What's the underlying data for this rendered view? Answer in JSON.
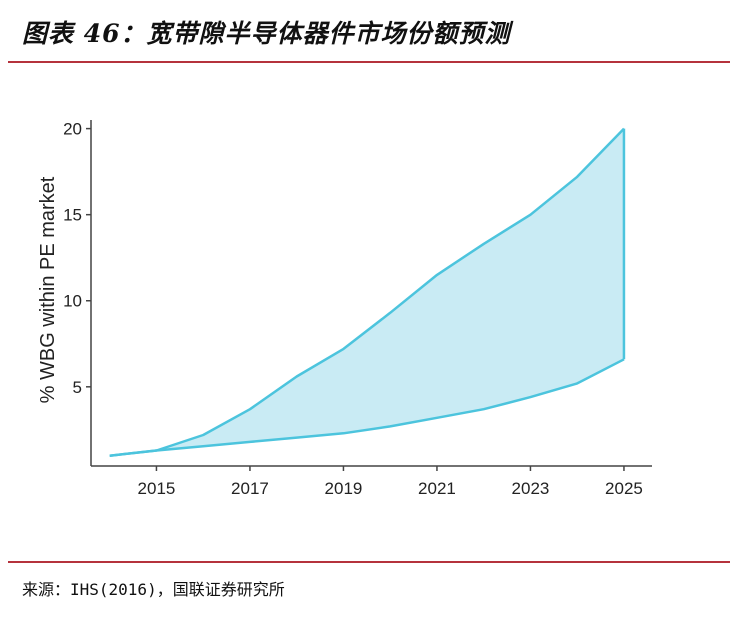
{
  "header": {
    "title": "图表 46：宽带隙半导体器件市场份额预测"
  },
  "footer": {
    "source": "来源：IHS(2016)，国联证券研究所"
  },
  "chart_data": {
    "type": "area",
    "title": "",
    "xlabel": "",
    "ylabel": "% WBG within PE market",
    "xlim": [
      2013.6,
      2025.6
    ],
    "ylim": [
      0.4,
      20.5
    ],
    "xticks": [
      2015,
      2017,
      2019,
      2021,
      2023,
      2025
    ],
    "yticks": [
      5,
      10,
      15,
      20
    ],
    "grid": false,
    "legend": "none",
    "colors": {
      "fill": "#c9ebf4",
      "line": "#4cc4dd",
      "axis": "#444444"
    },
    "x": [
      2014,
      2015,
      2016,
      2017,
      2018,
      2019,
      2020,
      2021,
      2022,
      2023,
      2024,
      2025
    ],
    "series": [
      {
        "values": [
          1.0,
          1.3,
          2.2,
          3.7,
          5.6,
          7.2,
          9.3,
          11.5,
          13.3,
          15.0,
          17.2,
          20.0
        ]
      },
      {
        "values": [
          1.0,
          1.3,
          1.55,
          1.8,
          2.05,
          2.3,
          2.7,
          3.2,
          3.7,
          4.4,
          5.2,
          6.6
        ]
      }
    ]
  }
}
